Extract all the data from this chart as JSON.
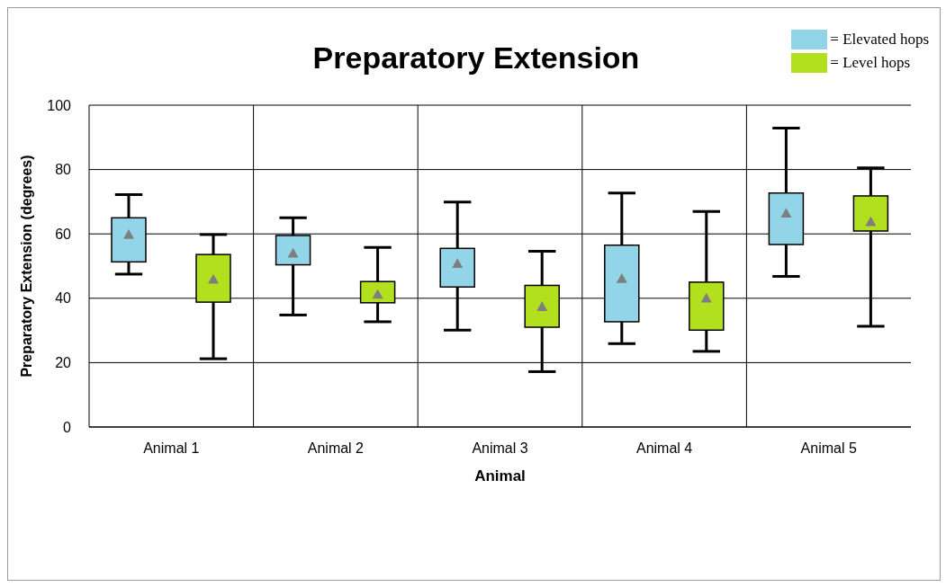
{
  "chart_data": {
    "type": "box",
    "title": "Preparatory Extension",
    "xlabel": "Animal",
    "ylabel": "Preparatory Extension (degrees)",
    "categories": [
      "Animal 1",
      "Animal 2",
      "Animal 3",
      "Animal 4",
      "Animal 5"
    ],
    "series": [
      {
        "name": "= Elevated hops",
        "color": "#93d5e8",
        "boxes": [
          {
            "low": 47.5,
            "q1": 51.3,
            "q3": 65,
            "high": 72.2,
            "mean": 59.8
          },
          {
            "low": 34.8,
            "q1": 50.4,
            "q3": 59.5,
            "high": 65,
            "mean": 54
          },
          {
            "low": 30.1,
            "q1": 43.5,
            "q3": 55.5,
            "high": 69.9,
            "mean": 50.8
          },
          {
            "low": 25.9,
            "q1": 32.7,
            "q3": 56.5,
            "high": 72.7,
            "mean": 46.1
          },
          {
            "low": 46.8,
            "q1": 56.7,
            "q3": 72.7,
            "high": 92.9,
            "mean": 66.4
          }
        ]
      },
      {
        "name": "= Level hops",
        "color": "#b3e01e",
        "boxes": [
          {
            "low": 21.2,
            "q1": 38.8,
            "q3": 53.6,
            "high": 59.8,
            "mean": 45.9
          },
          {
            "low": 32.7,
            "q1": 38.6,
            "q3": 45.2,
            "high": 55.8,
            "mean": 41.2
          },
          {
            "low": 17.2,
            "q1": 31,
            "q3": 44,
            "high": 54.6,
            "mean": 37.4
          },
          {
            "low": 23.5,
            "q1": 30.1,
            "q3": 45,
            "high": 67,
            "mean": 40
          },
          {
            "low": 31.3,
            "q1": 60.9,
            "q3": 71.8,
            "high": 80.5,
            "mean": 63.8
          }
        ]
      }
    ],
    "ylim": [
      0,
      100
    ],
    "yticks": [
      0,
      20,
      40,
      60,
      80,
      100
    ],
    "grid": true,
    "legend": "top right",
    "marker": "triangle"
  }
}
